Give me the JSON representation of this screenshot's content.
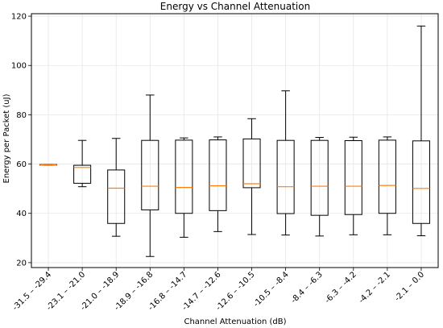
{
  "chart_data": {
    "type": "box",
    "title": "Energy vs Channel Attenuation",
    "xlabel": "Channel Attenuation (dB)",
    "ylabel": "Energy per Packet (uJ)",
    "ylim": [
      18,
      121
    ],
    "yticks": [
      20,
      40,
      60,
      80,
      100,
      120
    ],
    "grid": true,
    "median_color": "#ff7f0e",
    "box_color": "#000000",
    "categories": [
      "-31.5 – -29.4",
      "-23.1 – -21.0",
      "-21.0 – -18.9",
      "-18.9 – -16.8",
      "-16.8 – -14.7",
      "-14.7 – -12.6",
      "-12.6 – -10.5",
      "-10.5 – -8.4",
      "-8.4 – -6.3",
      "-6.3 – -4.2",
      "-4.2 – -2.1",
      "-2.1 – 0.0"
    ],
    "boxes": [
      {
        "whislo": 59.6,
        "q1": 59.6,
        "med": 59.7,
        "q3": 59.8,
        "whishi": 59.8
      },
      {
        "whislo": 50.8,
        "q1": 52.2,
        "med": 58.6,
        "q3": 59.5,
        "whishi": 69.6
      },
      {
        "whislo": 30.7,
        "q1": 35.9,
        "med": 50.2,
        "q3": 57.6,
        "whishi": 70.4
      },
      {
        "whislo": 22.5,
        "q1": 41.4,
        "med": 51.0,
        "q3": 69.6,
        "whishi": 88.0
      },
      {
        "whislo": 30.3,
        "q1": 40.0,
        "med": 50.5,
        "q3": 69.7,
        "whishi": 70.6
      },
      {
        "whislo": 32.6,
        "q1": 41.1,
        "med": 51.2,
        "q3": 69.8,
        "whishi": 71.0
      },
      {
        "whislo": 31.4,
        "q1": 50.4,
        "med": 52.0,
        "q3": 70.2,
        "whishi": 78.4
      },
      {
        "whislo": 31.2,
        "q1": 39.9,
        "med": 50.8,
        "q3": 69.6,
        "whishi": 89.7
      },
      {
        "whislo": 30.8,
        "q1": 39.2,
        "med": 51.0,
        "q3": 69.6,
        "whishi": 70.8
      },
      {
        "whislo": 31.3,
        "q1": 39.5,
        "med": 51.0,
        "q3": 69.5,
        "whishi": 70.9
      },
      {
        "whislo": 31.3,
        "q1": 40.0,
        "med": 51.3,
        "q3": 69.7,
        "whishi": 71.0
      },
      {
        "whislo": 30.9,
        "q1": 35.9,
        "med": 50.1,
        "q3": 69.4,
        "whishi": 116.0
      }
    ]
  }
}
